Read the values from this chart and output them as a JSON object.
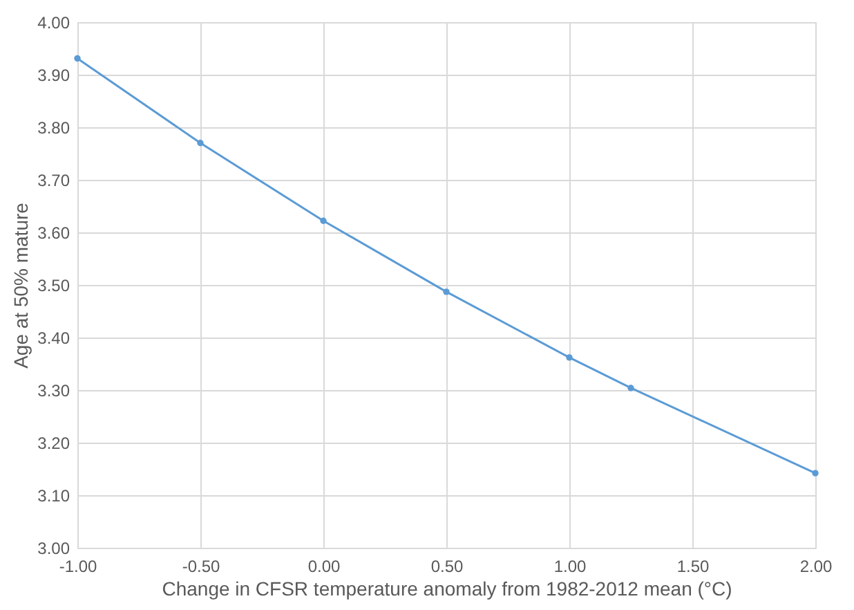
{
  "chart_data": {
    "type": "line",
    "xlabel": "Change in CFSR temperature anomaly from 1982-2012 mean (°C)",
    "ylabel": "Age at 50% mature",
    "x": [
      -1.0,
      -0.5,
      0.0,
      0.5,
      1.0,
      1.25,
      2.0
    ],
    "series": [
      {
        "color": "#5b9bd5",
        "values": [
          3.931,
          3.77,
          3.622,
          3.487,
          3.362,
          3.304,
          3.142
        ]
      }
    ],
    "xlim": [
      -1.0,
      2.0
    ],
    "xticks": [
      {
        "value": -1.0,
        "label": "-1.00"
      },
      {
        "value": -0.5,
        "label": "-0.50"
      },
      {
        "value": 0.0,
        "label": "0.00"
      },
      {
        "value": 0.5,
        "label": "0.50"
      },
      {
        "value": 1.0,
        "label": "1.00"
      },
      {
        "value": 1.5,
        "label": "1.50"
      },
      {
        "value": 2.0,
        "label": "2.00"
      }
    ],
    "ylim": [
      3.0,
      4.0
    ],
    "yticks": [
      {
        "value": 3.0,
        "label": "3.00"
      },
      {
        "value": 3.1,
        "label": "3.10"
      },
      {
        "value": 3.2,
        "label": "3.20"
      },
      {
        "value": 3.3,
        "label": "3.30"
      },
      {
        "value": 3.4,
        "label": "3.40"
      },
      {
        "value": 3.5,
        "label": "3.50"
      },
      {
        "value": 3.6,
        "label": "3.60"
      },
      {
        "value": 3.7,
        "label": "3.70"
      },
      {
        "value": 3.8,
        "label": "3.80"
      },
      {
        "value": 3.9,
        "label": "3.90"
      },
      {
        "value": 4.0,
        "label": "4.00"
      }
    ],
    "grid": true,
    "marker": "circle",
    "line_style": "solid"
  }
}
